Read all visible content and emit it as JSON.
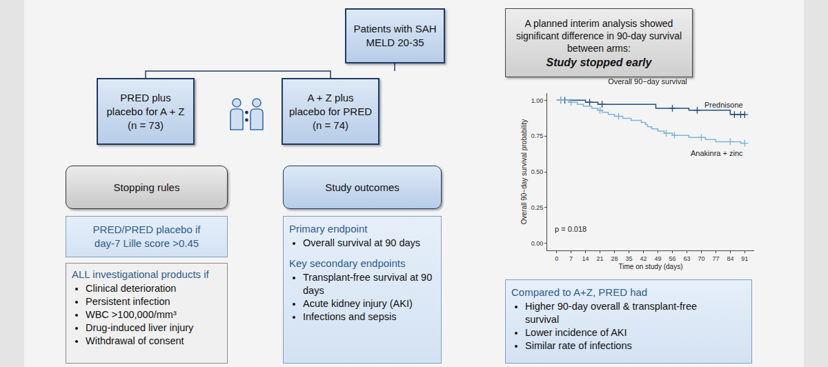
{
  "top_box": {
    "lines": [
      "Patients with SAH",
      "MELD 20-35"
    ]
  },
  "arms": [
    {
      "lines": [
        "PRED plus",
        "placebo for A + Z",
        "(n = 73)"
      ]
    },
    {
      "lines": [
        "A + Z plus",
        "placebo for PRED",
        "(n = 74)"
      ]
    }
  ],
  "stopping_rules": {
    "header": "Stopping rules",
    "pred_rule": [
      "PRED/PRED placebo if",
      "day-7 Lille score >0.45"
    ],
    "all_rule": {
      "title": "ALL investigational products if",
      "items": [
        "Clinical deterioration",
        "Persistent infection",
        "WBC >100,000/mm³",
        "Drug-induced liver injury",
        "Withdrawal of consent"
      ]
    }
  },
  "study_outcomes": {
    "header": "Study outcomes",
    "primary": {
      "title": "Primary endpoint",
      "items": [
        "Overall survival at 90 days"
      ]
    },
    "secondary": {
      "title": "Key secondary endpoints",
      "items": [
        "Transplant-free survival at 90 days",
        "Acute kidney injury (AKI)",
        "Infections and sepsis"
      ]
    }
  },
  "interim_box": {
    "text": "A planned interim analysis showed significant difference in 90-day survival between arms:",
    "emphasis": "Study stopped early"
  },
  "chart_data": {
    "type": "line",
    "title": "Overall 90−day survival",
    "x_label": "Time on study (days)",
    "y_label": "Overall 90−day survival probability",
    "xlim": [
      -4.55,
      95.55
    ],
    "xticks": [
      0,
      7,
      14,
      21,
      28,
      35,
      42,
      49,
      56,
      63,
      70,
      77,
      84,
      91
    ],
    "ylim": [
      -0.05,
      1.05
    ],
    "yticks": [
      {
        "value": 0,
        "label": "0.00"
      },
      {
        "value": 0.25,
        "label": "0.25"
      },
      {
        "value": 0.5,
        "label": "0.50"
      },
      {
        "value": 0.75,
        "label": "0.75"
      },
      {
        "value": 1,
        "label": "1.00"
      }
    ],
    "grid": false,
    "series": [
      {
        "name": "Prednisone",
        "color": "#1f4e79",
        "line_style": "step",
        "marker": "cross",
        "x": [
          0,
          14,
          20,
          48,
          64,
          84,
          91
        ],
        "values": [
          1.0,
          0.986,
          0.972,
          0.944,
          0.93,
          0.9,
          0.9
        ],
        "censored": [
          2,
          4,
          16,
          22,
          56,
          68,
          86,
          89,
          91
        ]
      },
      {
        "name": "Anakinra + zinc",
        "color": "#7fb3d9",
        "line_style": "step",
        "marker": "cross",
        "x": [
          0,
          6,
          10,
          13,
          17,
          20,
          22,
          25,
          28,
          32,
          36,
          41,
          43,
          44,
          46,
          49,
          52,
          56,
          64,
          72,
          77,
          89,
          91
        ],
        "values": [
          1.0,
          0.986,
          0.972,
          0.958,
          0.944,
          0.93,
          0.916,
          0.902,
          0.888,
          0.874,
          0.86,
          0.845,
          0.83,
          0.815,
          0.8,
          0.785,
          0.77,
          0.755,
          0.74,
          0.725,
          0.71,
          0.7,
          0.7
        ],
        "censored": [
          2,
          7,
          21,
          30,
          53,
          57,
          70,
          84,
          91
        ]
      }
    ],
    "annotations": [
      {
        "text": "p = 0.018"
      }
    ]
  },
  "comparison": {
    "title": "Compared to A+Z, PRED had",
    "items": [
      "Higher 90-day overall & transplant-free survival",
      "Lower incidence of AKI",
      "Similar rate of infections"
    ]
  }
}
